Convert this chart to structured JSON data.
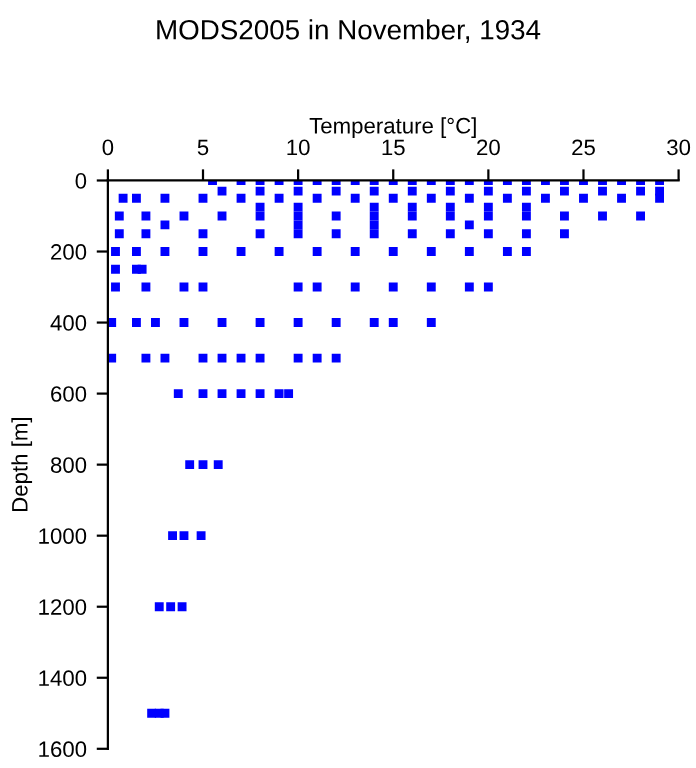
{
  "chart_data": {
    "type": "scatter",
    "title": "MODS2005 in November, 1934",
    "xlabel": "Temperature [°C]",
    "ylabel": "Depth [m]",
    "x": [
      5.5,
      7,
      8,
      9,
      10,
      11,
      12,
      13,
      14,
      15,
      16,
      17,
      18,
      19,
      20,
      21,
      22,
      23,
      24,
      25,
      26,
      27,
      28,
      29,
      6,
      8,
      10,
      12,
      14,
      16,
      18,
      20,
      22,
      24,
      26,
      28,
      29,
      0.8,
      1.5,
      3,
      5,
      7,
      9,
      11,
      13,
      15,
      17,
      19,
      21,
      23,
      25,
      27,
      29,
      8,
      10,
      14,
      16,
      18,
      20,
      22,
      0.6,
      2,
      4,
      6,
      8,
      10,
      12,
      14,
      16,
      18,
      20,
      22,
      24,
      26,
      28,
      3,
      10,
      14,
      19,
      0.6,
      2,
      5,
      8,
      10,
      12,
      14,
      16,
      18,
      20,
      22,
      24,
      0.4,
      1.5,
      3,
      5,
      7,
      9,
      11,
      13,
      15,
      17,
      19,
      21,
      22,
      0.4,
      1.5,
      1.8,
      0.4,
      2,
      4,
      5,
      10,
      11,
      13,
      15,
      17,
      19,
      20,
      0.2,
      1.5,
      2.5,
      4,
      6,
      8,
      10,
      12,
      14,
      15,
      17,
      0.2,
      2,
      3,
      5,
      6,
      7,
      8,
      10,
      11,
      12,
      3.7,
      5,
      6,
      7,
      8,
      9,
      9.5,
      4.3,
      5,
      5.8,
      3.4,
      4,
      4.9,
      2.7,
      3.3,
      3.9,
      2.3,
      2.7,
      3.0
    ],
    "values": [
      0,
      0,
      0,
      0,
      0,
      0,
      0,
      0,
      0,
      0,
      0,
      0,
      0,
      0,
      0,
      0,
      0,
      0,
      0,
      0,
      0,
      0,
      0,
      0,
      30,
      30,
      30,
      30,
      30,
      30,
      30,
      30,
      30,
      30,
      30,
      30,
      30,
      50,
      50,
      50,
      50,
      50,
      50,
      50,
      50,
      50,
      50,
      50,
      50,
      50,
      50,
      50,
      50,
      75,
      75,
      75,
      75,
      75,
      75,
      75,
      100,
      100,
      100,
      100,
      100,
      100,
      100,
      100,
      100,
      100,
      100,
      100,
      100,
      100,
      100,
      125,
      125,
      125,
      125,
      150,
      150,
      150,
      150,
      150,
      150,
      150,
      150,
      150,
      150,
      150,
      150,
      200,
      200,
      200,
      200,
      200,
      200,
      200,
      200,
      200,
      200,
      200,
      200,
      200,
      250,
      250,
      250,
      300,
      300,
      300,
      300,
      300,
      300,
      300,
      300,
      300,
      300,
      300,
      400,
      400,
      400,
      400,
      400,
      400,
      400,
      400,
      400,
      400,
      400,
      500,
      500,
      500,
      500,
      500,
      500,
      500,
      500,
      500,
      500,
      600,
      600,
      600,
      600,
      600,
      600,
      600,
      800,
      800,
      800,
      1000,
      1000,
      1000,
      1200,
      1200,
      1200,
      1500,
      1500,
      1500
    ],
    "color": "#0000ff",
    "marker": "square",
    "grid": false,
    "xlim": [
      0,
      30
    ],
    "xticks": [
      0,
      5,
      10,
      15,
      20,
      25,
      30
    ],
    "ylim": [
      1600,
      0
    ],
    "yticks": [
      0,
      200,
      400,
      600,
      800,
      1000,
      1200,
      1400,
      1600
    ]
  }
}
